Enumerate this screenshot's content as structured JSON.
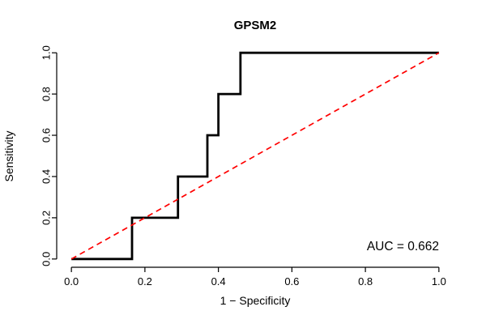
{
  "chart_data": {
    "type": "line",
    "title": "GPSM2",
    "xlabel": "1 − Specificity",
    "ylabel": "Sensitivity",
    "xlim": [
      0,
      1
    ],
    "ylim": [
      0,
      1
    ],
    "xticks": [
      0.0,
      0.2,
      0.4,
      0.6,
      0.8,
      1.0
    ],
    "yticks": [
      0.0,
      0.2,
      0.4,
      0.6,
      0.8,
      1.0
    ],
    "grid": false,
    "legend": "none",
    "annotation": "AUC = 0.662",
    "auc": 0.662,
    "colors": {
      "roc_curve": "#000000",
      "reference_line": "#ff0000"
    },
    "series": [
      {
        "name": "roc-curve",
        "color": "#000000",
        "style": "solid",
        "width": 2.8,
        "x": [
          0,
          0.165,
          0.165,
          0.29,
          0.29,
          0.37,
          0.37,
          0.4,
          0.4,
          0.46,
          0.46,
          1.0
        ],
        "y": [
          0,
          0,
          0.2,
          0.2,
          0.4,
          0.4,
          0.6,
          0.6,
          0.8,
          0.8,
          1.0,
          1.0
        ]
      },
      {
        "name": "chance-diagonal",
        "color": "#ff0000",
        "style": "dashed",
        "width": 1.7,
        "x": [
          0,
          1
        ],
        "y": [
          0,
          1
        ]
      }
    ]
  }
}
